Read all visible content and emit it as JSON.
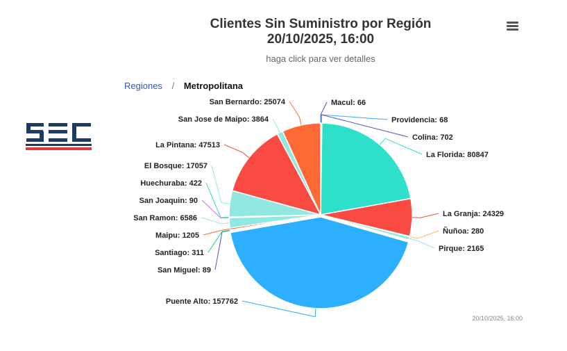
{
  "header": {
    "title_line1": "Clientes Sin Suministro por Región",
    "title_line2": "20/10/2025, 16:00",
    "subtitle": "haga click para ver detalles"
  },
  "breadcrumb": {
    "root": "Regiones",
    "separator": "/",
    "current": "Metropolitana"
  },
  "credit": "20/10/2025, 16:00",
  "menu_icon": "hamburger-menu-icon",
  "logo": {
    "colors": [
      "#1b3a66",
      "#e03a3e"
    ]
  },
  "chart_data": {
    "type": "pie",
    "title": "Clientes Sin Suministro por Región",
    "slices": [
      {
        "name": "Macul",
        "value": 66,
        "color": "#544fc5"
      },
      {
        "name": "Providencia",
        "value": 68,
        "color": "#2caffe"
      },
      {
        "name": "Colina",
        "value": 702,
        "color": "#544fc5"
      },
      {
        "name": "La Florida",
        "value": 80847,
        "color": "#2ee0ca"
      },
      {
        "name": "La Granja",
        "value": 24329,
        "color": "#fa4b42"
      },
      {
        "name": "Ñuñoa",
        "value": 280,
        "color": "#feb56a"
      },
      {
        "name": "Pirque",
        "value": 2165,
        "color": "#91e8e1"
      },
      {
        "name": "Puente Alto",
        "value": 157762,
        "color": "#2caffe"
      },
      {
        "name": "San Miguel",
        "value": 89,
        "color": "#544fc5"
      },
      {
        "name": "Santiago",
        "value": 311,
        "color": "#00e272"
      },
      {
        "name": "Maipu",
        "value": 1205,
        "color": "#fe6a35"
      },
      {
        "name": "San Ramon",
        "value": 6586,
        "color": "#91e8e1"
      },
      {
        "name": "San Joaquin",
        "value": 90,
        "color": "#d568fb"
      },
      {
        "name": "Huechuraba",
        "value": 422,
        "color": "#2ee0ca"
      },
      {
        "name": "El Bosque",
        "value": 17057,
        "color": "#91e8e1"
      },
      {
        "name": "La Pintana",
        "value": 47513,
        "color": "#fa4b42"
      },
      {
        "name": "San Jose de Maipo",
        "value": 3864,
        "color": "#91e8e1"
      },
      {
        "name": "San Bernardo",
        "value": 25074,
        "color": "#fe6a35"
      }
    ]
  }
}
